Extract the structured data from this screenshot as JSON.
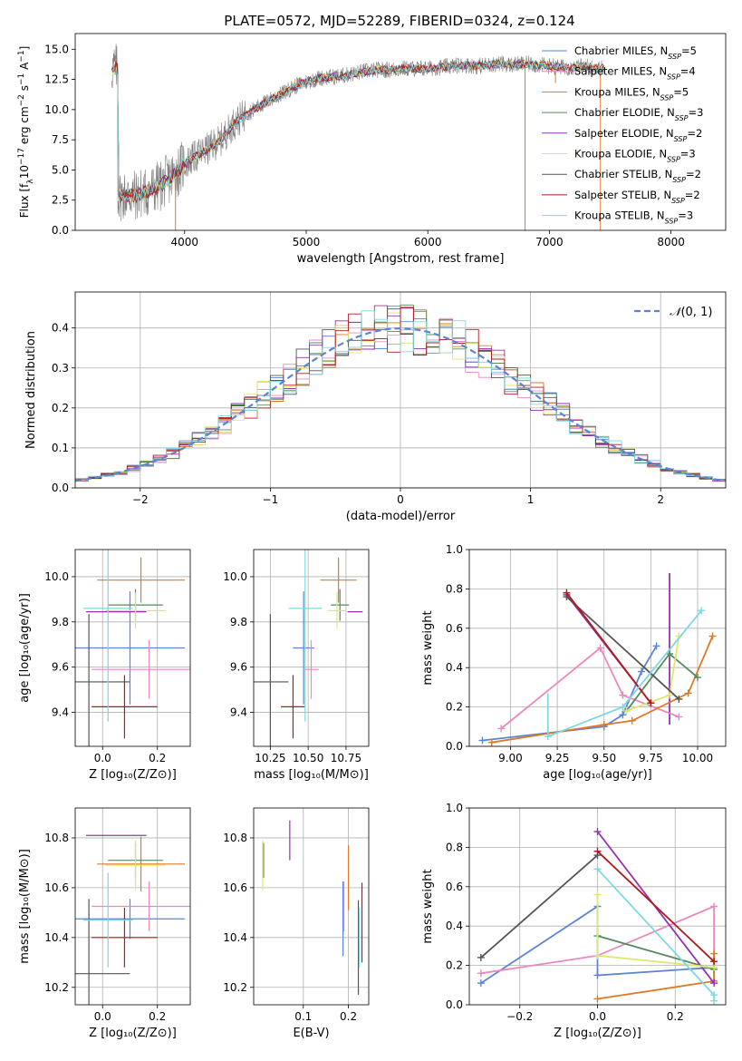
{
  "figure_title": "PLATE=0572, MJD=52289, FIBERID=0324, z=0.124",
  "models": [
    {
      "name": "Chabrier MILES",
      "color": "#5b84d6",
      "nssp": "5"
    },
    {
      "name": "Salpeter MILES",
      "color": "#ec88c0",
      "nssp": "4"
    },
    {
      "name": "Kroupa MILES",
      "color": "#de7a27",
      "nssp": "5"
    },
    {
      "name": "Chabrier ELODIE",
      "color": "#568a5c",
      "nssp": "3"
    },
    {
      "name": "Salpeter ELODIE",
      "color": "#9431b0",
      "nssp": "2"
    },
    {
      "name": "Kroupa ELODIE",
      "color": "#dfe86e",
      "nssp": "3"
    },
    {
      "name": "Chabrier STELIB",
      "color": "#555555",
      "nssp": "2"
    },
    {
      "name": "Salpeter STELIB",
      "color": "#b01a1a",
      "nssp": "2"
    },
    {
      "name": "Kroupa STELIB",
      "color": "#7ed8e2",
      "nssp": "3"
    }
  ],
  "chart_data": [
    {
      "id": "spectrum",
      "type": "line",
      "title": "PLATE=0572, MJD=52289, FIBERID=0324, z=0.124",
      "xlabel": "wavelength [Angstrom, rest frame]",
      "ylabel": "Flux [f_λ 10^-17 erg cm^-2 s^-1 A^-1]",
      "xlim": [
        3100,
        8450
      ],
      "ylim": [
        0,
        16.3
      ],
      "xticks": [
        4000,
        5000,
        6000,
        7000,
        8000
      ],
      "yticks": [
        0.0,
        2.5,
        5.0,
        7.5,
        10.0,
        12.5,
        15.0
      ],
      "legend": "upper right",
      "continuum": [
        [
          3450,
          2.9
        ],
        [
          3600,
          2.9
        ],
        [
          3700,
          3.2
        ],
        [
          3800,
          3.7
        ],
        [
          3900,
          4.5
        ],
        [
          4000,
          5.5
        ],
        [
          4100,
          6.2
        ],
        [
          4200,
          6.8
        ],
        [
          4300,
          7.5
        ],
        [
          4400,
          8.8
        ],
        [
          4500,
          9.6
        ],
        [
          4600,
          10.2
        ],
        [
          4700,
          10.8
        ],
        [
          4800,
          11.3
        ],
        [
          4900,
          11.9
        ],
        [
          5000,
          12.3
        ],
        [
          5100,
          12.6
        ],
        [
          5200,
          12.7
        ],
        [
          5300,
          12.8
        ],
        [
          5400,
          13.0
        ],
        [
          5500,
          13.2
        ],
        [
          5600,
          13.3
        ],
        [
          5700,
          13.3
        ],
        [
          5800,
          13.4
        ],
        [
          5900,
          13.4
        ],
        [
          6000,
          13.4
        ],
        [
          6100,
          13.5
        ],
        [
          6200,
          13.6
        ],
        [
          6300,
          13.7
        ],
        [
          6400,
          13.6
        ],
        [
          6500,
          13.7
        ],
        [
          6600,
          13.8
        ],
        [
          6700,
          13.7
        ],
        [
          6800,
          13.8
        ],
        [
          6900,
          13.7
        ],
        [
          7000,
          13.6
        ],
        [
          7100,
          13.5
        ],
        [
          7200,
          13.5
        ],
        [
          7300,
          13.6
        ],
        [
          7400,
          13.4
        ]
      ],
      "model_range": [
        3400,
        7450
      ],
      "data_range": [
        3400,
        7450
      ],
      "spikes": [
        {
          "x": 3925,
          "y": 0.0
        },
        {
          "x": 6800,
          "y": 0.0
        },
        {
          "x": 7420,
          "y": 0.0
        },
        {
          "x": 7050,
          "y": 12.2
        }
      ]
    },
    {
      "id": "residuals",
      "type": "histogram",
      "xlabel": "(data-model)/error",
      "ylabel": "Normed distribution",
      "xlim": [
        -2.5,
        2.5
      ],
      "ylim": [
        0,
        0.49
      ],
      "xticks": [
        -2,
        -1,
        0,
        1,
        2
      ],
      "xticklabels": [
        "−2",
        "−1",
        "0",
        "1",
        "2"
      ],
      "yticks": [
        0.0,
        0.1,
        0.2,
        0.3,
        0.4
      ],
      "grid": true,
      "legend": "upper right",
      "normal_label": "N(0,1)",
      "normal_color": "#5b84d6",
      "bin_width": 0.1
    },
    {
      "id": "age-vs-Z",
      "type": "errorbar",
      "xlabel": "Z [log10(Z/Z⊙)]",
      "ylabel": "age [log10(age/yr)]",
      "xlim": [
        -0.1,
        0.32
      ],
      "ylim": [
        9.25,
        10.12
      ],
      "xticks": [
        0.0,
        0.2
      ],
      "xticklabels": [
        "0.0",
        "0.2"
      ],
      "yticks": [
        9.4,
        9.6,
        9.8,
        10.0
      ],
      "yticklabels": [
        "9.4",
        "9.6",
        "9.8",
        "10.0"
      ],
      "grid": true,
      "points": [
        {
          "x": 0.1,
          "xerr": 0.2,
          "y": 9.685,
          "yerr": 0.25,
          "c": 0
        },
        {
          "x": 0.17,
          "xerr": 0.21,
          "y": 9.59,
          "yerr": 0.13,
          "c": 1
        },
        {
          "x": 0.14,
          "xerr": 0.16,
          "y": 9.985,
          "yerr": 0.1,
          "c": 2
        },
        {
          "x": 0.12,
          "xerr": 0.1,
          "y": 9.875,
          "yerr": 0.07,
          "c": 3
        },
        {
          "x": 0.05,
          "xerr": 0.11,
          "y": 9.845,
          "yerr": 0.0,
          "c": 4
        },
        {
          "x": 0.12,
          "xerr": 0.11,
          "y": 9.85,
          "yerr": 0.08,
          "c": 5
        },
        {
          "x": -0.05,
          "xerr": 0.15,
          "y": 9.535,
          "yerr": 0.3,
          "c": 6
        },
        {
          "x": 0.08,
          "xerr": 0.12,
          "y": 9.425,
          "yerr": 0.14,
          "c": 7
        },
        {
          "x": 0.02,
          "xerr": 0.09,
          "y": 9.86,
          "yerr": 0.5,
          "c": 8
        }
      ]
    },
    {
      "id": "age-vs-mass",
      "type": "errorbar",
      "xlabel": "mass [log10(M/M⊙)]",
      "ylabel": "",
      "xlim": [
        10.14,
        10.9
      ],
      "ylim": [
        9.25,
        10.12
      ],
      "xticks": [
        10.25,
        10.5,
        10.75
      ],
      "xticklabels": [
        "10.25",
        "10.50",
        "10.75"
      ],
      "yticks": [
        9.4,
        9.6,
        9.8,
        10.0
      ],
      "yticklabels": [
        "9.4",
        "9.6",
        "9.8",
        "10.0"
      ],
      "grid": true,
      "points": [
        {
          "x": 10.47,
          "xerr": 0.07,
          "y": 9.685,
          "yerr": 0.25,
          "c": 0
        },
        {
          "x": 10.52,
          "xerr": 0.05,
          "y": 9.59,
          "yerr": 0.13,
          "c": 1
        },
        {
          "x": 10.7,
          "xerr": 0.12,
          "y": 9.985,
          "yerr": 0.1,
          "c": 2
        },
        {
          "x": 10.71,
          "xerr": 0.06,
          "y": 9.875,
          "yerr": 0.07,
          "c": 3
        },
        {
          "x": 10.81,
          "xerr": 0.05,
          "y": 9.845,
          "yerr": 0.0,
          "c": 4
        },
        {
          "x": 10.69,
          "xerr": 0.06,
          "y": 9.85,
          "yerr": 0.08,
          "c": 5
        },
        {
          "x": 10.25,
          "xerr": 0.12,
          "y": 9.535,
          "yerr": 0.3,
          "c": 6
        },
        {
          "x": 10.4,
          "xerr": 0.08,
          "y": 9.425,
          "yerr": 0.14,
          "c": 7
        },
        {
          "x": 10.48,
          "xerr": 0.11,
          "y": 9.86,
          "yerr": 0.5,
          "c": 8
        }
      ]
    },
    {
      "id": "massweight-vs-age",
      "type": "line",
      "xlabel": "age [log10(age/yr)]",
      "ylabel": "mass weight",
      "xlim": [
        8.78,
        10.15
      ],
      "ylim": [
        0.0,
        1.0
      ],
      "xticks": [
        9.0,
        9.25,
        9.5,
        9.75,
        10.0
      ],
      "xticklabels": [
        "9.00",
        "9.25",
        "9.50",
        "9.75",
        "10.00"
      ],
      "yticks": [
        0.0,
        0.2,
        0.4,
        0.6,
        0.8,
        1.0
      ],
      "yticklabels": [
        "0.0",
        "0.2",
        "0.4",
        "0.6",
        "0.8",
        "1.0"
      ],
      "grid": true,
      "series": [
        {
          "c": 0,
          "x": [
            8.85,
            9.5,
            9.6,
            9.7,
            9.78
          ],
          "y": [
            0.03,
            0.1,
            0.16,
            0.38,
            0.51
          ],
          "err": [
            0,
            0,
            0.02,
            0,
            0
          ]
        },
        {
          "c": 1,
          "x": [
            8.95,
            9.48,
            9.6,
            9.9
          ],
          "y": [
            0.09,
            0.5,
            0.26,
            0.15
          ],
          "err": [
            0,
            0,
            0,
            0
          ]
        },
        {
          "c": 2,
          "x": [
            8.9,
            9.5,
            9.65,
            9.95,
            10.08
          ],
          "y": [
            0.02,
            0.11,
            0.13,
            0.27,
            0.56
          ],
          "err": [
            0,
            0,
            0,
            0,
            0
          ]
        },
        {
          "c": 3,
          "x": [
            9.62,
            9.85,
            10.0
          ],
          "y": [
            0.18,
            0.47,
            0.35
          ],
          "err": [
            0,
            0,
            0
          ]
        },
        {
          "c": 4,
          "x": [
            9.3,
            9.75
          ],
          "y": [
            0.77,
            0.22
          ],
          "err": [
            0,
            0
          ]
        },
        {
          "c": 5,
          "x": [
            9.62,
            9.85,
            9.9
          ],
          "y": [
            0.18,
            0.26,
            0.56
          ],
          "err": [
            0,
            0,
            0
          ]
        },
        {
          "c": 6,
          "x": [
            9.3,
            9.9
          ],
          "y": [
            0.76,
            0.24
          ],
          "err": [
            0,
            0
          ]
        },
        {
          "c": 7,
          "x": [
            9.3,
            9.75
          ],
          "y": [
            0.78,
            0.22
          ],
          "err": [
            0,
            0
          ]
        },
        {
          "c": 8,
          "x": [
            9.2,
            9.6,
            10.02
          ],
          "y": [
            0.05,
            0.2,
            0.69
          ],
          "err": [
            0.22,
            0,
            0
          ]
        }
      ],
      "vbars": [
        {
          "c": 4,
          "x": 9.85,
          "y0": 0.11,
          "y1": 0.88
        }
      ]
    },
    {
      "id": "mass-vs-Z",
      "type": "errorbar",
      "xlabel": "Z [log10(Z/Z⊙)]",
      "ylabel": "mass [log10(M/M⊙)]",
      "xlim": [
        -0.1,
        0.32
      ],
      "ylim": [
        10.13,
        10.92
      ],
      "xticks": [
        0.0,
        0.2
      ],
      "xticklabels": [
        "0.0",
        "0.2"
      ],
      "yticks": [
        10.2,
        10.4,
        10.6,
        10.8
      ],
      "yticklabels": [
        "10.2",
        "10.4",
        "10.6",
        "10.8"
      ],
      "grid": true,
      "points": [
        {
          "x": 0.1,
          "xerr": 0.2,
          "y": 10.475,
          "yerr": 0.08,
          "c": 0
        },
        {
          "x": 0.17,
          "xerr": 0.21,
          "y": 10.525,
          "yerr": 0.1,
          "c": 1
        },
        {
          "x": 0.14,
          "xerr": 0.16,
          "y": 10.695,
          "yerr": 0.11,
          "c": 2
        },
        {
          "x": 0.12,
          "xerr": 0.1,
          "y": 10.71,
          "yerr": 0.07,
          "c": 3
        },
        {
          "x": 0.05,
          "xerr": 0.11,
          "y": 10.81,
          "yerr": 0.0,
          "c": 4
        },
        {
          "x": 0.12,
          "xerr": 0.11,
          "y": 10.69,
          "yerr": 0.1,
          "c": 5
        },
        {
          "x": -0.05,
          "xerr": 0.15,
          "y": 10.255,
          "yerr": 0.3,
          "c": 6
        },
        {
          "x": 0.08,
          "xerr": 0.12,
          "y": 10.4,
          "yerr": 0.12,
          "c": 7
        },
        {
          "x": 0.02,
          "xerr": 0.09,
          "y": 10.47,
          "yerr": 0.19,
          "c": 8
        }
      ]
    },
    {
      "id": "mass-vs-ebv",
      "type": "errorbar",
      "xlabel": "E(B-V)",
      "ylabel": "",
      "xlim": [
        -0.01,
        0.245
      ],
      "ylim": [
        10.13,
        10.92
      ],
      "xticks": [
        0.1,
        0.2
      ],
      "xticklabels": [
        "0.1",
        "0.2"
      ],
      "yticks": [
        10.2,
        10.4,
        10.6,
        10.8
      ],
      "yticklabels": [
        "10.2",
        "10.4",
        "10.6",
        "10.8"
      ],
      "grid": true,
      "points": [
        {
          "x": 0.188,
          "xerr": 0,
          "y": 10.475,
          "yerr": 0.15,
          "c": 0
        },
        {
          "x": 0.19,
          "xerr": 0,
          "y": 10.525,
          "yerr": 0.1,
          "c": 1
        },
        {
          "x": 0.2,
          "xerr": 0,
          "y": 10.64,
          "yerr": 0.13,
          "c": 2
        },
        {
          "x": 0.012,
          "xerr": 0,
          "y": 10.71,
          "yerr": 0.07,
          "c": 3
        },
        {
          "x": 0.07,
          "xerr": 0,
          "y": 10.79,
          "yerr": 0.08,
          "c": 4
        },
        {
          "x": 0.01,
          "xerr": 0,
          "y": 10.69,
          "yerr": 0.1,
          "c": 5
        },
        {
          "x": 0.222,
          "xerr": 0,
          "y": 10.36,
          "yerr": 0.19,
          "c": 6
        },
        {
          "x": 0.23,
          "xerr": 0,
          "y": 10.46,
          "yerr": 0.16,
          "c": 7
        },
        {
          "x": 0.224,
          "xerr": 0,
          "y": 10.4,
          "yerr": 0.12,
          "c": 8
        }
      ]
    },
    {
      "id": "massweight-vs-Z",
      "type": "line",
      "xlabel": "Z [log10(Z/Z⊙)]",
      "ylabel": "mass weight",
      "xlim": [
        -0.33,
        0.33
      ],
      "ylim": [
        0.0,
        1.0
      ],
      "xticks": [
        -0.2,
        0.0,
        0.2
      ],
      "xticklabels": [
        "−0.2",
        "0.0",
        "0.2"
      ],
      "yticks": [
        0.0,
        0.2,
        0.4,
        0.6,
        0.8,
        1.0
      ],
      "yticklabels": [
        "0.0",
        "0.2",
        "0.4",
        "0.6",
        "0.8",
        "1.0"
      ],
      "grid": true,
      "series": [
        {
          "c": 0,
          "x": [
            -0.3,
            0.0,
            0.0,
            0.3
          ],
          "y": [
            0.11,
            0.5,
            0.15,
            0.19
          ]
        },
        {
          "c": 1,
          "x": [
            -0.3,
            0.0,
            0.3,
            0.3
          ],
          "y": [
            0.16,
            0.25,
            0.5,
            0.12
          ]
        },
        {
          "c": 2,
          "x": [
            0.0,
            0.3,
            0.3
          ],
          "y": [
            0.03,
            0.12,
            0.26
          ]
        },
        {
          "c": 3,
          "x": [
            0.0,
            0.3
          ],
          "y": [
            0.35,
            0.18
          ]
        },
        {
          "c": 4,
          "x": [
            0.0,
            0.3
          ],
          "y": [
            0.88,
            0.11
          ]
        },
        {
          "c": 5,
          "x": [
            0.0,
            0.0,
            0.3
          ],
          "y": [
            0.56,
            0.25,
            0.19
          ]
        },
        {
          "c": 6,
          "x": [
            -0.3,
            0.0
          ],
          "y": [
            0.24,
            0.76
          ]
        },
        {
          "c": 7,
          "x": [
            0.0,
            0.3
          ],
          "y": [
            0.78,
            0.22
          ]
        },
        {
          "c": 8,
          "x": [
            0.0,
            0.3,
            0.3
          ],
          "y": [
            0.69,
            0.05,
            0.02
          ]
        }
      ]
    }
  ]
}
